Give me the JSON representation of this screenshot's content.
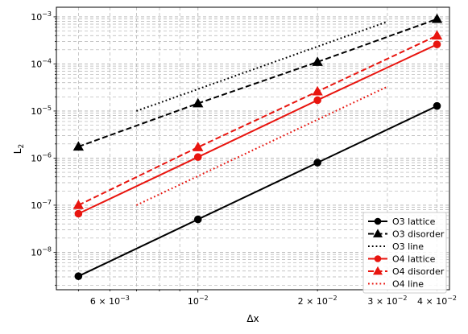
{
  "chart_data": {
    "type": "line",
    "xscale": "log",
    "yscale": "log",
    "xlabel": "Δx",
    "ylabel": "L",
    "ylabel_sub": "2",
    "xlim": [
      0.0044,
      0.043
    ],
    "ylim": [
      1.6e-09,
      0.0016
    ],
    "grid": true,
    "legend_position": "lower-right",
    "x_ticks": [
      {
        "value": 0.006,
        "mantissa": "6",
        "exp": "−3"
      },
      {
        "value": 0.01,
        "mantissa": "",
        "exp": "−2"
      },
      {
        "value": 0.02,
        "mantissa": "2",
        "exp": "−2"
      },
      {
        "value": 0.03,
        "mantissa": "3",
        "exp": "−2"
      },
      {
        "value": 0.04,
        "mantissa": "4",
        "exp": "−2"
      }
    ],
    "y_ticks": [
      {
        "value": 1e-08,
        "exp": "−8"
      },
      {
        "value": 1e-07,
        "exp": "−7"
      },
      {
        "value": 1e-06,
        "exp": "−6"
      },
      {
        "value": 1e-05,
        "exp": "−5"
      },
      {
        "value": 0.0001,
        "exp": "−4"
      },
      {
        "value": 0.001,
        "exp": "−3"
      }
    ],
    "series": [
      {
        "name": "O3 lattice",
        "color": "#000000",
        "dash": "solid",
        "marker": "circle",
        "x": [
          0.005,
          0.01,
          0.02,
          0.04
        ],
        "y": [
          3.1e-09,
          5e-08,
          8e-07,
          1.28e-05
        ]
      },
      {
        "name": "O3 disorder",
        "color": "#000000",
        "dash": "dashed",
        "marker": "triangle",
        "x": [
          0.005,
          0.01,
          0.02,
          0.04
        ],
        "y": [
          1.75e-06,
          1.45e-05,
          0.00011,
          0.0009
        ]
      },
      {
        "name": "O3 line",
        "color": "#000000",
        "dash": "dotted",
        "marker": "none",
        "x": [
          0.007,
          0.03
        ],
        "y": [
          1e-05,
          0.00079
        ]
      },
      {
        "name": "O4 lattice",
        "color": "#e8150f",
        "dash": "solid",
        "marker": "circle",
        "x": [
          0.005,
          0.01,
          0.02,
          0.04
        ],
        "y": [
          6.6e-08,
          1.05e-06,
          1.7e-05,
          0.00026
        ]
      },
      {
        "name": "O4 disorder",
        "color": "#e8150f",
        "dash": "dashed",
        "marker": "triangle",
        "x": [
          0.005,
          0.01,
          0.02,
          0.04
        ],
        "y": [
          1e-07,
          1.7e-06,
          2.6e-05,
          0.0004
        ]
      },
      {
        "name": "O4 line",
        "color": "#e8150f",
        "dash": "dotted",
        "marker": "none",
        "x": [
          0.007,
          0.03
        ],
        "y": [
          1e-07,
          3.3e-05
        ]
      }
    ]
  }
}
